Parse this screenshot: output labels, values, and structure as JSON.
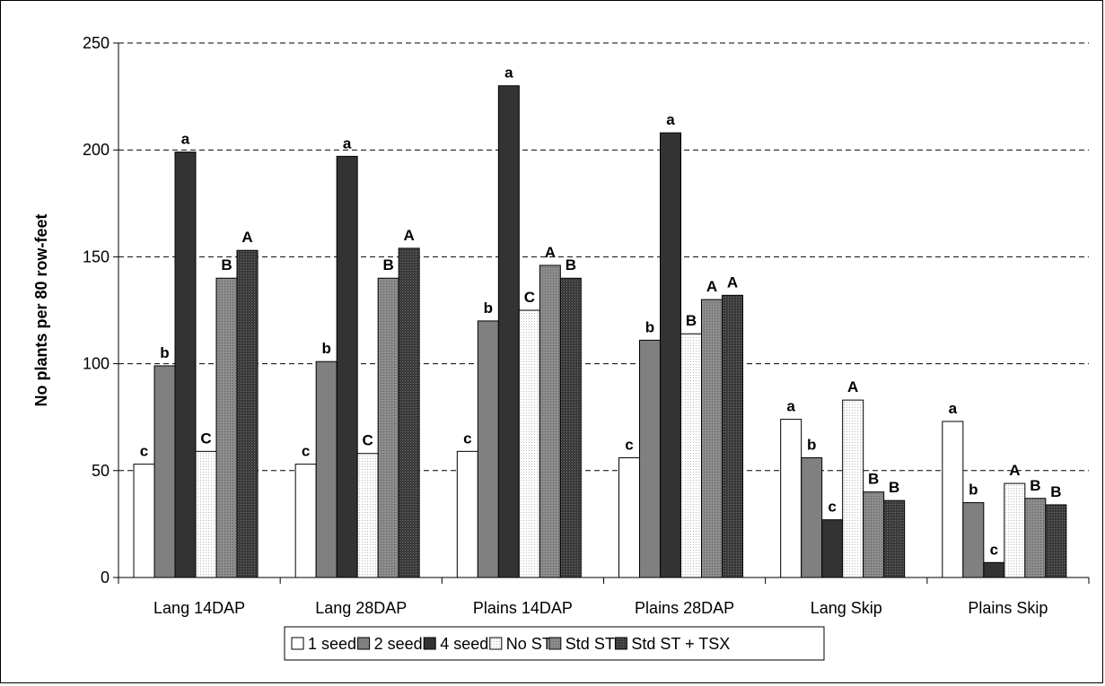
{
  "chart_data": {
    "type": "bar",
    "title": "",
    "xlabel": "",
    "ylabel": "No plants per 80 row-feet",
    "ylim": [
      0,
      250
    ],
    "yticks": [
      0,
      50,
      100,
      150,
      200,
      250
    ],
    "grid": "horizontal dashed",
    "legend_position": "bottom",
    "categories": [
      "Lang 14DAP",
      "Lang 28DAP",
      "Plains 14DAP",
      "Plains 28DAP",
      "Lang Skip",
      "Plains Skip"
    ],
    "series": [
      {
        "name": "1 seed",
        "values": [
          53,
          53,
          59,
          56,
          74,
          73
        ],
        "labels": [
          "c",
          "c",
          "c",
          "c",
          "a",
          "a"
        ],
        "color": "#ffffff",
        "pattern": "none"
      },
      {
        "name": "2 seed",
        "values": [
          99,
          101,
          120,
          111,
          56,
          35
        ],
        "labels": [
          "b",
          "b",
          "b",
          "b",
          "b",
          "b"
        ],
        "color": "#808080",
        "pattern": "none"
      },
      {
        "name": "4 seed",
        "values": [
          199,
          197,
          230,
          208,
          27,
          7
        ],
        "labels": [
          "a",
          "a",
          "a",
          "a",
          "c",
          "c"
        ],
        "color": "#333333",
        "pattern": "none"
      },
      {
        "name": "No ST",
        "values": [
          59,
          58,
          125,
          114,
          83,
          44
        ],
        "labels": [
          "C",
          "C",
          "C",
          "B",
          "A",
          "A"
        ],
        "color": "#ffffff",
        "pattern": "dots"
      },
      {
        "name": "Std ST",
        "values": [
          140,
          140,
          146,
          130,
          40,
          37
        ],
        "labels": [
          "B",
          "B",
          "A",
          "A",
          "B",
          "B"
        ],
        "color": "#8c8c8c",
        "pattern": "dots"
      },
      {
        "name": "Std ST + TSX",
        "values": [
          153,
          154,
          140,
          132,
          36,
          34
        ],
        "labels": [
          "A",
          "A",
          "B",
          "A",
          "B",
          "B"
        ],
        "color": "#3a3a3a",
        "pattern": "dots"
      }
    ]
  }
}
